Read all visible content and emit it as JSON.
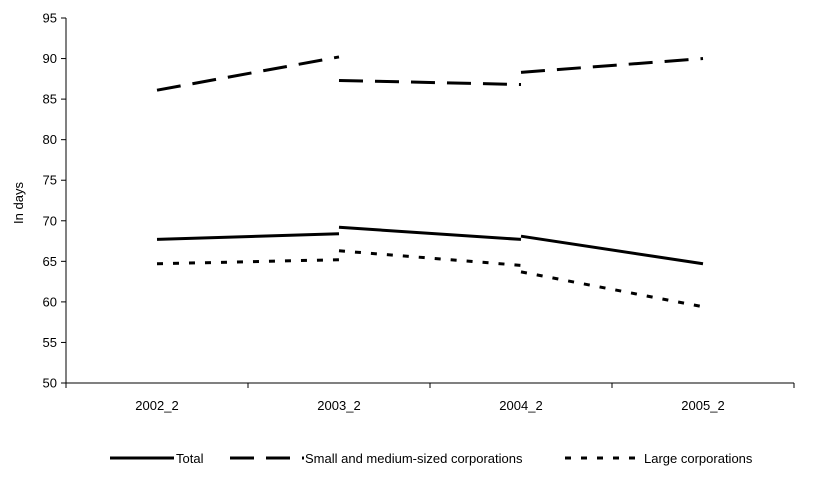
{
  "chart_data": {
    "type": "line",
    "categories": [
      "2002_2",
      "2003_2",
      "2004_2",
      "2005_2"
    ],
    "ylabel": "In days",
    "xlabel": "",
    "ylim": [
      50,
      95
    ],
    "yticks": [
      50,
      55,
      60,
      65,
      70,
      75,
      80,
      85,
      90,
      95
    ],
    "grid": false,
    "legend_position": "bottom",
    "series": [
      {
        "name": "Total",
        "style": "solid",
        "color": "#000000",
        "segments": [
          [
            [
              "2002_2",
              67.7
            ],
            [
              "2003_2",
              68.4
            ]
          ],
          [
            [
              "2003_2",
              69.2
            ],
            [
              "2004_2",
              67.7
            ]
          ],
          [
            [
              "2004_2",
              68.1
            ],
            [
              "2005_2",
              64.7
            ]
          ]
        ]
      },
      {
        "name": "Small and medium-sized corporations",
        "style": "long-dash",
        "color": "#000000",
        "segments": [
          [
            [
              "2002_2",
              86.1
            ],
            [
              "2003_2",
              90.2
            ]
          ],
          [
            [
              "2003_2",
              87.3
            ],
            [
              "2004_2",
              86.8
            ]
          ],
          [
            [
              "2004_2",
              88.3
            ],
            [
              "2005_2",
              90.0
            ]
          ]
        ]
      },
      {
        "name": "Large corporations",
        "style": "short-dash",
        "color": "#000000",
        "segments": [
          [
            [
              "2002_2",
              64.7
            ],
            [
              "2003_2",
              65.2
            ]
          ],
          [
            [
              "2003_2",
              66.3
            ],
            [
              "2004_2",
              64.5
            ]
          ],
          [
            [
              "2004_2",
              63.7
            ],
            [
              "2005_2",
              59.4
            ]
          ]
        ]
      }
    ]
  }
}
